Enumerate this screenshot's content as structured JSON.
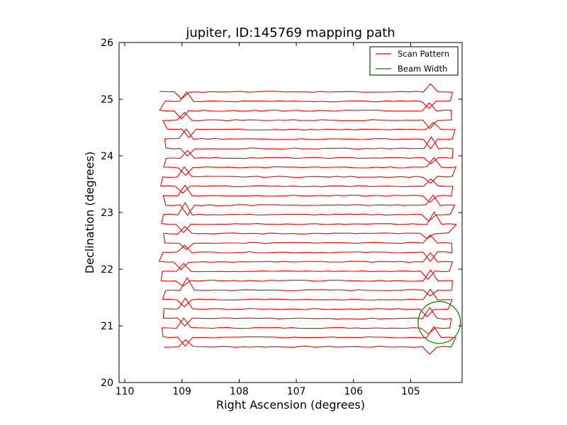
{
  "chart_data": {
    "type": "line",
    "title": "jupiter, ID:145769 mapping path",
    "xlabel": "Right Ascension (degrees)",
    "ylabel": "Declination (degrees)",
    "xlim": [
      110.1,
      104.1
    ],
    "ylim": [
      20,
      26
    ],
    "x_ticks": [
      110,
      109,
      108,
      107,
      106,
      105
    ],
    "x_tick_labels": [
      "110",
      "109",
      "108",
      "107",
      "106",
      "105"
    ],
    "y_ticks": [
      20,
      21,
      22,
      23,
      24,
      25,
      26
    ],
    "y_tick_labels": [
      "20",
      "21",
      "22",
      "23",
      "24",
      "25",
      "26"
    ],
    "grid": false,
    "legend_position": "top-right",
    "scan_pattern": {
      "name": "Scan Pattern",
      "color": "#ff0000",
      "x_min": 109.35,
      "x_max": 104.25,
      "y_start": 20.63,
      "y_end": 25.13,
      "rows": 28,
      "last_row_end_x": 105.6
    },
    "beam": {
      "name": "Beam Width",
      "color": "#008000",
      "center_ra": 104.5,
      "center_dec": 21.06,
      "radius_deg": 0.37
    }
  }
}
